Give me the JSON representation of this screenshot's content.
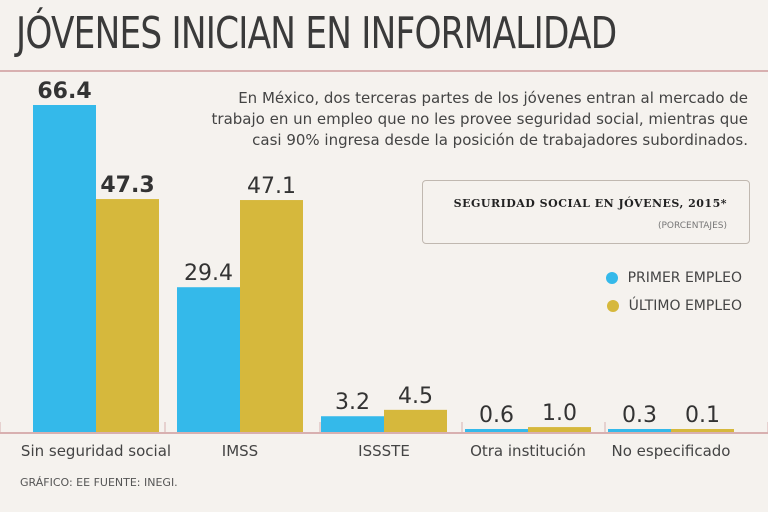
{
  "header": {
    "title": "JÓVENES INICIAN EN INFORMALIDAD",
    "description": "En México, dos terceras partes de los jóvenes entran al mercado de trabajo en un empleo que no les provee seguridad social, mientras que casi 90% ingresa desde la posición de trabajadores subordinados."
  },
  "chart_box": {
    "title": "SEGURIDAD SOCIAL EN JÓVENES, 2015*",
    "subtitle": "(PORCENTAJES)"
  },
  "legend": [
    {
      "label": "PRIMER EMPLEO",
      "color": "#34b9ea"
    },
    {
      "label": "ÚLTIMO EMPLEO",
      "color": "#d6b83c"
    }
  ],
  "footer": {
    "source": "GRÁFICO: EE  FUENTE: INEGI."
  },
  "chart_data": {
    "type": "bar",
    "title": "SEGURIDAD SOCIAL EN JÓVENES, 2015*",
    "ylabel": "(PORCENTAJES)",
    "categories": [
      "Sin seguridad social",
      "IMSS",
      "ISSSTE",
      "Otra institución",
      "No especificado"
    ],
    "series": [
      {
        "name": "PRIMER EMPLEO",
        "color": "#34b9ea",
        "values": [
          66.4,
          29.4,
          3.2,
          0.6,
          0.3
        ],
        "labels": [
          "66.4",
          "29.4",
          "3.2",
          "0.6",
          "0.3"
        ]
      },
      {
        "name": "ÚLTIMO EMPLEO",
        "color": "#d6b83c",
        "values": [
          47.3,
          47.1,
          4.5,
          1.0,
          0.1
        ],
        "labels": [
          "47.3",
          "47.1",
          "4.5",
          "1.0",
          "0.1"
        ]
      }
    ],
    "bold_labels": [
      "Sin seguridad social"
    ],
    "ylim": [
      0,
      66.4
    ],
    "grid": false
  }
}
